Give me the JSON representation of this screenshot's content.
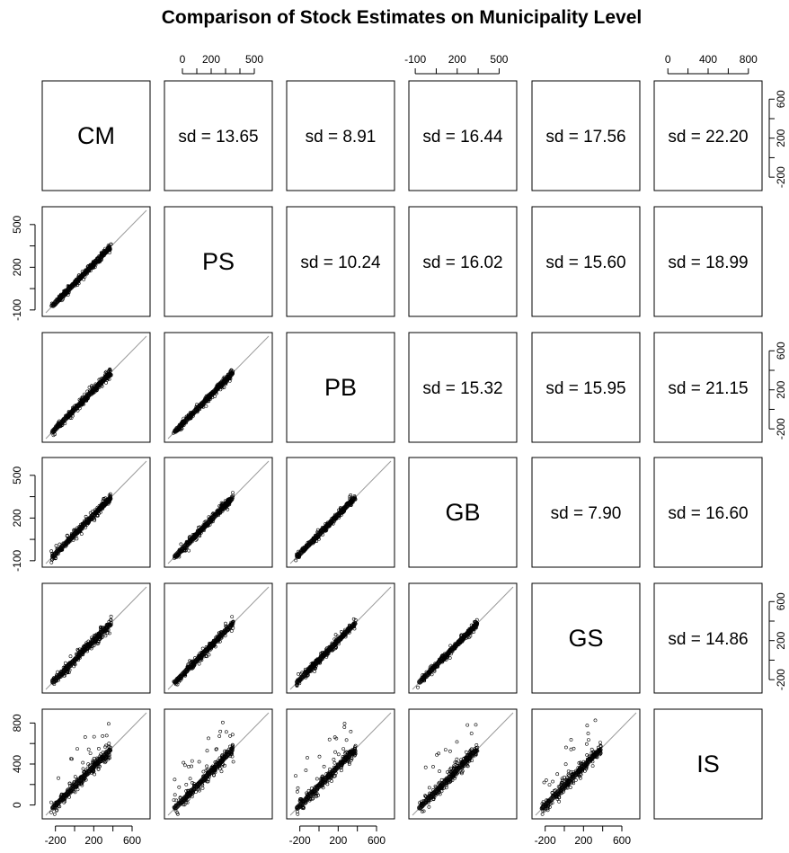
{
  "chart_data": {
    "type": "scatter",
    "title": "Comparison of Stock Estimates on Municipality Level",
    "variables": [
      "CM",
      "PS",
      "PB",
      "GB",
      "GS",
      "IS"
    ],
    "upper_panels": [
      {
        "row": "CM",
        "col": "PS",
        "label": "sd = 13.65"
      },
      {
        "row": "CM",
        "col": "PB",
        "label": "sd = 8.91"
      },
      {
        "row": "CM",
        "col": "GB",
        "label": "sd = 16.44"
      },
      {
        "row": "CM",
        "col": "GS",
        "label": "sd = 17.56"
      },
      {
        "row": "CM",
        "col": "IS",
        "label": "sd = 22.20"
      },
      {
        "row": "PS",
        "col": "PB",
        "label": "sd = 10.24"
      },
      {
        "row": "PS",
        "col": "GB",
        "label": "sd = 16.02"
      },
      {
        "row": "PS",
        "col": "GS",
        "label": "sd = 15.60"
      },
      {
        "row": "PS",
        "col": "IS",
        "label": "sd = 18.99"
      },
      {
        "row": "PB",
        "col": "GB",
        "label": "sd = 15.32"
      },
      {
        "row": "PB",
        "col": "GS",
        "label": "sd = 15.95"
      },
      {
        "row": "PB",
        "col": "IS",
        "label": "sd = 21.15"
      },
      {
        "row": "GB",
        "col": "GS",
        "label": "sd = 7.90"
      },
      {
        "row": "GB",
        "col": "IS",
        "label": "sd = 16.60"
      },
      {
        "row": "GS",
        "col": "IS",
        "label": "sd = 14.86"
      }
    ],
    "axes": {
      "top": [
        {
          "col": "PS",
          "ticks": [
            "0",
            "200",
            "500"
          ],
          "range": [
            -100,
            600
          ]
        },
        {
          "col": "GB",
          "ticks": [
            "-100",
            "200",
            "500"
          ],
          "range": [
            -120,
            600
          ]
        },
        {
          "col": "IS",
          "ticks": [
            "0",
            "400",
            "800"
          ],
          "range": [
            -100,
            900
          ]
        }
      ],
      "bottom": [
        {
          "col": "CM",
          "ticks": [
            "-200",
            "200",
            "600"
          ],
          "range": [
            -300,
            750
          ]
        },
        {
          "col": "PB",
          "ticks": [
            "-200",
            "200",
            "600"
          ],
          "range": [
            -300,
            750
          ]
        },
        {
          "col": "GS",
          "ticks": [
            "-200",
            "200",
            "600"
          ],
          "range": [
            -300,
            750
          ]
        }
      ],
      "left": [
        {
          "row": "PS",
          "ticks": [
            "-100",
            "200",
            "500"
          ],
          "range": [
            -120,
            600
          ]
        },
        {
          "row": "GB",
          "ticks": [
            "-100",
            "200",
            "500"
          ],
          "range": [
            -120,
            600
          ]
        },
        {
          "row": "IS",
          "ticks": [
            "0",
            "400",
            "800"
          ],
          "range": [
            -100,
            900
          ]
        }
      ],
      "right": [
        {
          "row": "CM",
          "ticks": [
            "-200",
            "200",
            "600"
          ],
          "range": [
            -300,
            750
          ]
        },
        {
          "row": "PB",
          "ticks": [
            "-200",
            "200",
            "600"
          ],
          "range": [
            -300,
            750
          ]
        },
        {
          "row": "GS",
          "ticks": [
            "-200",
            "200",
            "600"
          ],
          "range": [
            -300,
            750
          ]
        }
      ]
    },
    "lower_panels": "scatter of row variable vs column variable with 1:1 reference line; points tightly along diagonal, IS row shows wider spread up to ~850",
    "data_range": [
      -100,
      850
    ]
  }
}
